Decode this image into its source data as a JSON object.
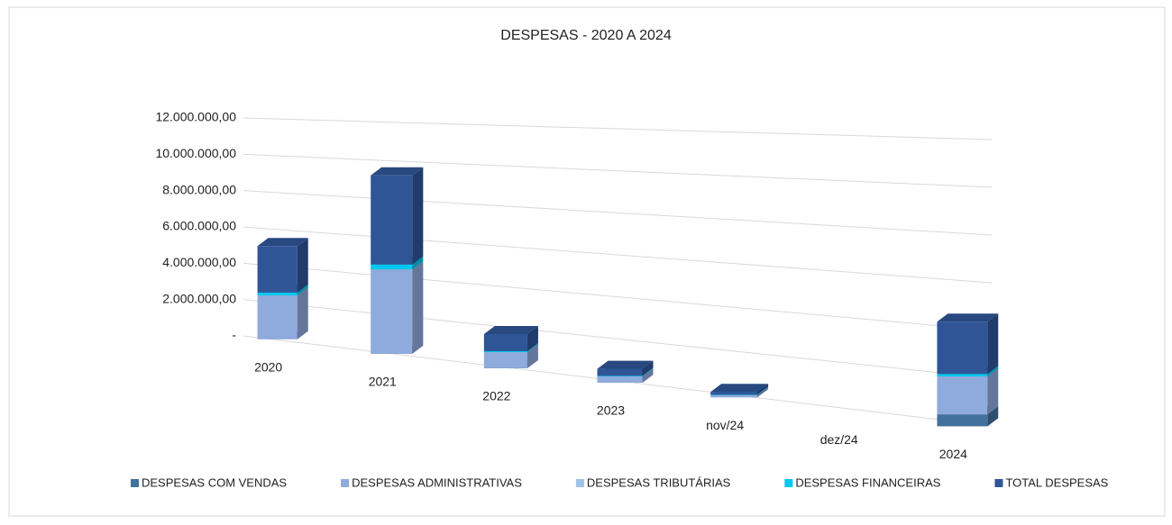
{
  "chart_data": {
    "type": "bar3d_stacked",
    "title": "DESPESAS - 2020 A 2024",
    "categories": [
      "2020",
      "2021",
      "2022",
      "2023",
      "nov/24",
      "dez/24",
      "2024"
    ],
    "series": [
      {
        "name": "DESPESAS COM VENDAS",
        "color": "#41719c",
        "values": [
          0,
          0,
          0,
          0,
          0,
          null,
          500000
        ]
      },
      {
        "name": "DESPESAS ADMINISTRATIVAS",
        "color": "#8faadc",
        "values": [
          2400000,
          4400000,
          800000,
          300000,
          100000,
          null,
          1600000
        ]
      },
      {
        "name": "DESPESAS TRIBUTÁRIAS",
        "color": "#9dc3e6",
        "values": [
          0,
          0,
          0,
          0,
          0,
          null,
          0
        ]
      },
      {
        "name": "DESPESAS FINANCEIRAS",
        "color": "#00c8f0",
        "values": [
          150000,
          250000,
          50000,
          30000,
          20000,
          null,
          100000
        ]
      },
      {
        "name": "TOTAL DESPESAS",
        "color": "#2f5597",
        "values": [
          2550000,
          4650000,
          850000,
          330000,
          120000,
          null,
          2200000
        ]
      }
    ],
    "ylim": [
      0,
      12000000
    ],
    "yticks": [
      {
        "value": 0,
        "label": "-"
      },
      {
        "value": 2000000,
        "label": "2.000.000,00"
      },
      {
        "value": 4000000,
        "label": "4.000.000,00"
      },
      {
        "value": 6000000,
        "label": "6.000.000,00"
      },
      {
        "value": 8000000,
        "label": "8.000.000,00"
      },
      {
        "value": 10000000,
        "label": "10.000.000,00"
      },
      {
        "value": 12000000,
        "label": "12.000.000,00"
      }
    ],
    "grid": true,
    "legend": "bottom"
  }
}
